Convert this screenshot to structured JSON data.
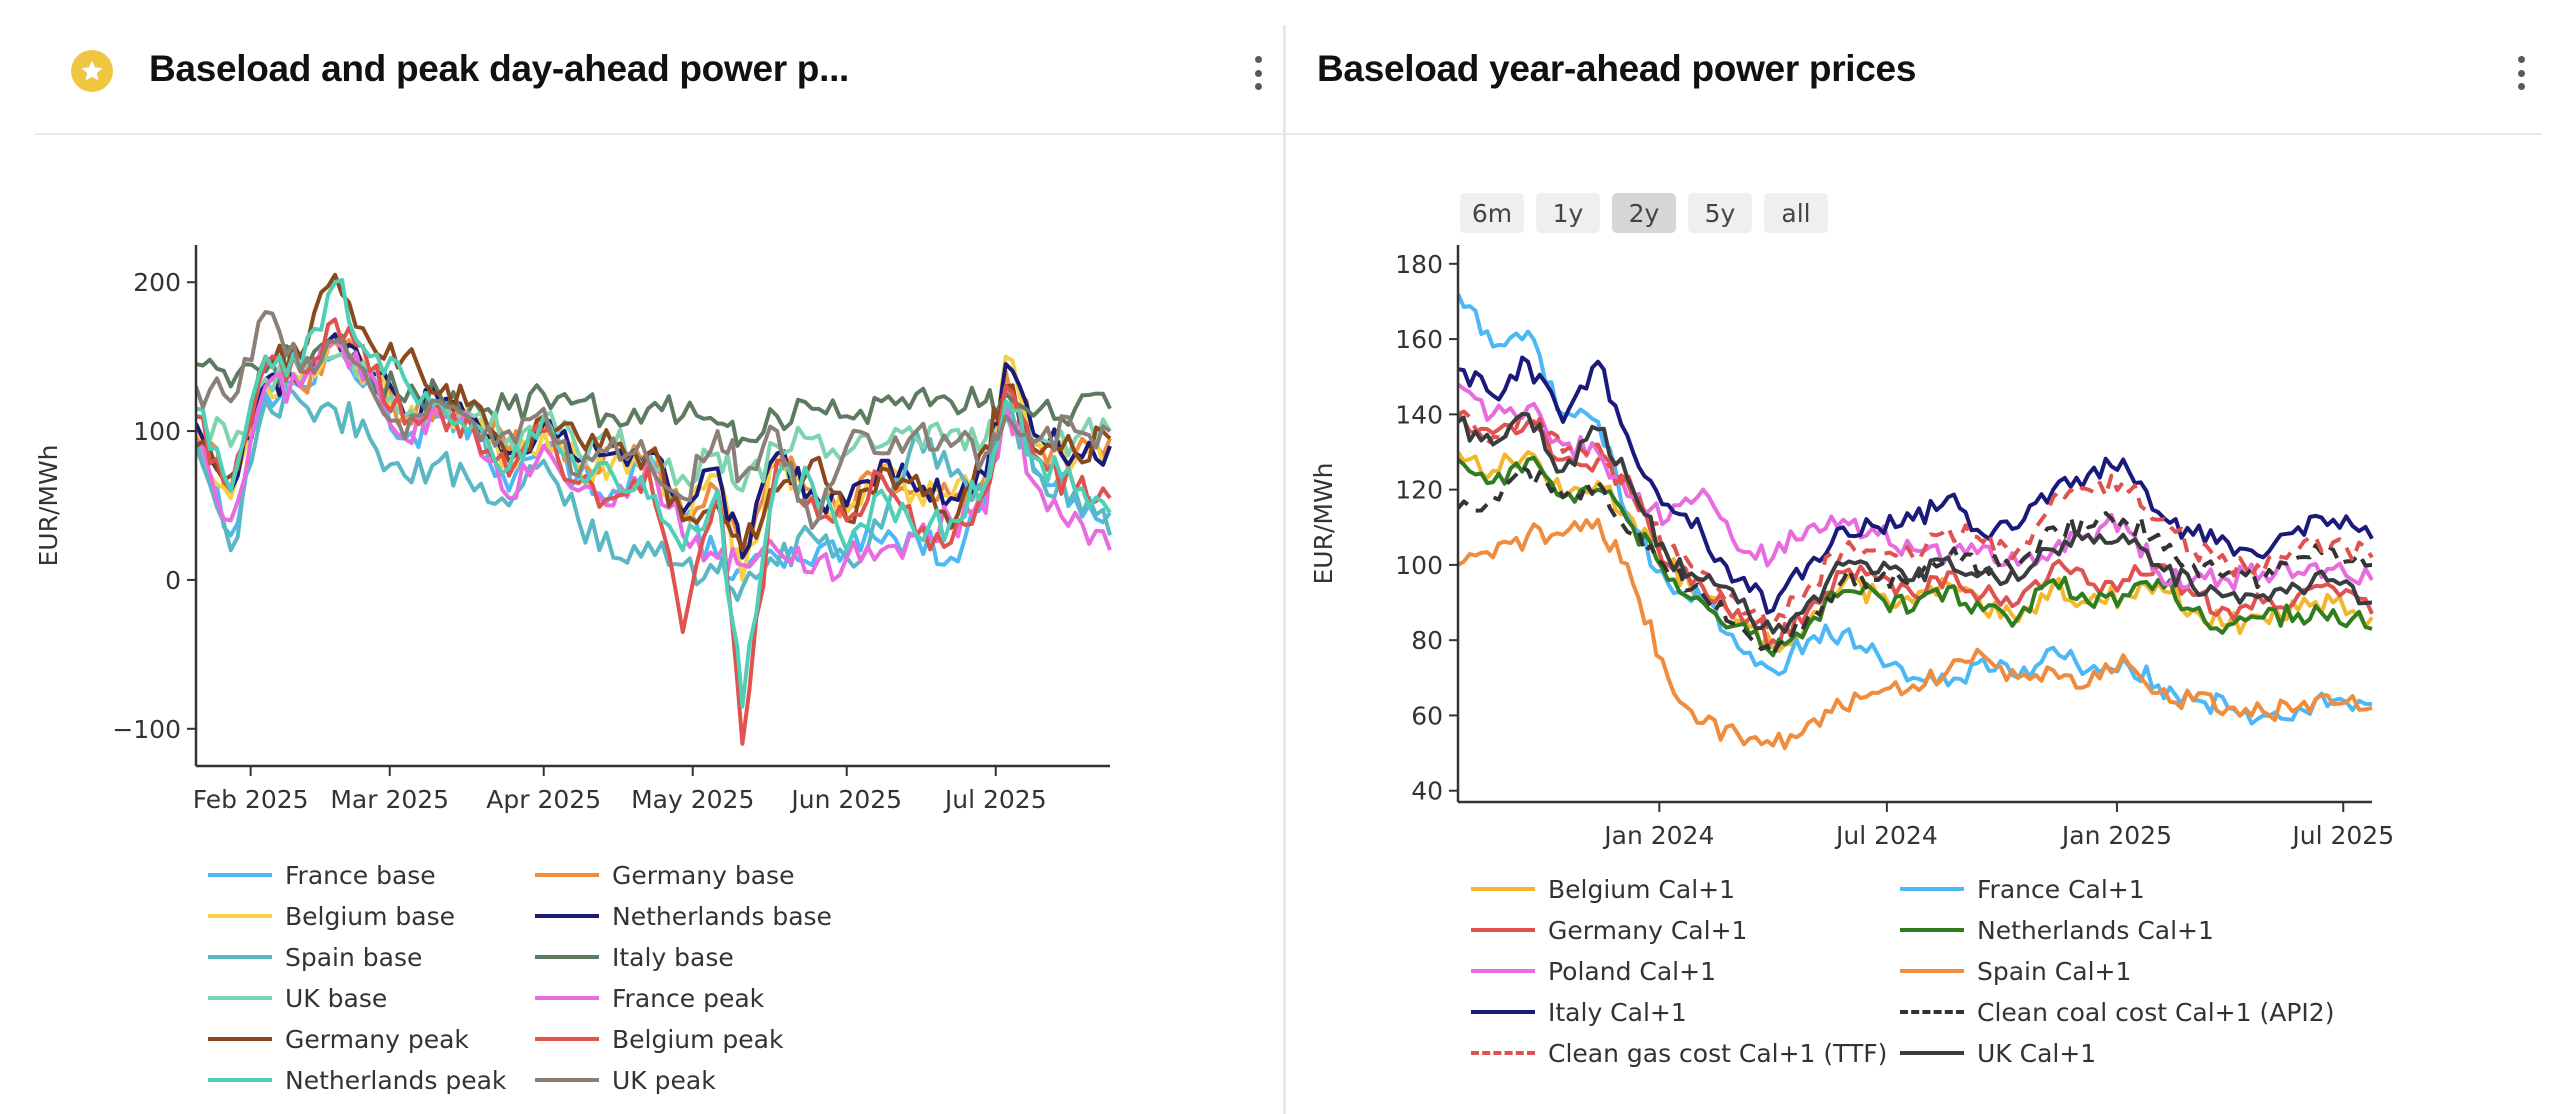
{
  "left_panel": {
    "title": "Baseload and peak day-ahead power p...",
    "favorite_icon": "star-icon",
    "menu_icon": "kebab-menu-icon"
  },
  "right_panel": {
    "title": "Baseload year-ahead power prices",
    "menu_icon": "kebab-menu-icon",
    "range_buttons": [
      {
        "label": "6m",
        "active": false
      },
      {
        "label": "1y",
        "active": false
      },
      {
        "label": "2y",
        "active": true
      },
      {
        "label": "5y",
        "active": false
      },
      {
        "label": "all",
        "active": false
      }
    ]
  },
  "chart_data": [
    {
      "type": "line",
      "title": "Baseload and peak day-ahead power prices",
      "xlabel": "",
      "ylabel": "EUR/MWh",
      "x_range": [
        "2025-01-21",
        "2025-07-24"
      ],
      "ylim": [
        -125,
        225
      ],
      "yticks": [
        -100,
        0,
        100,
        200
      ],
      "ytick_labels": [
        "−100",
        "0",
        "100",
        "200"
      ],
      "xticks": [
        "2025-02-01",
        "2025-03-01",
        "2025-04-01",
        "2025-05-01",
        "2025-06-01",
        "2025-07-01"
      ],
      "xtick_labels": [
        "Feb 2025",
        "Mar 2025",
        "Apr 2025",
        "May 2025",
        "Jun 2025",
        "Jul 2025"
      ],
      "grid": false,
      "legend_position": "bottom",
      "x": [
        "2025-01-21",
        "2025-01-28",
        "2025-02-04",
        "2025-02-11",
        "2025-02-18",
        "2025-02-25",
        "2025-03-04",
        "2025-03-11",
        "2025-03-18",
        "2025-03-25",
        "2025-04-01",
        "2025-04-08",
        "2025-04-15",
        "2025-04-22",
        "2025-04-29",
        "2025-05-06",
        "2025-05-11",
        "2025-05-18",
        "2025-05-25",
        "2025-06-01",
        "2025-06-08",
        "2025-06-15",
        "2025-06-22",
        "2025-06-29",
        "2025-07-03",
        "2025-07-10",
        "2025-07-17",
        "2025-07-24"
      ],
      "series": [
        {
          "name": "France base",
          "color": "#4db8f5",
          "dash": false,
          "values": [
            100,
            30,
            125,
            130,
            150,
            135,
            95,
            110,
            105,
            60,
            90,
            70,
            60,
            85,
            40,
            15,
            5,
            15,
            10,
            20,
            25,
            30,
            15,
            55,
            135,
            70,
            55,
            45
          ]
        },
        {
          "name": "Germany base",
          "color": "#ef8c3d",
          "dash": false,
          "values": [
            105,
            60,
            135,
            130,
            160,
            140,
            110,
            120,
            110,
            85,
            105,
            75,
            90,
            85,
            45,
            60,
            20,
            80,
            60,
            50,
            75,
            60,
            55,
            70,
            140,
            90,
            85,
            95
          ]
        },
        {
          "name": "Belgium base",
          "color": "#f7d046",
          "dash": false,
          "values": [
            100,
            55,
            130,
            135,
            160,
            140,
            105,
            115,
            105,
            80,
            100,
            75,
            80,
            80,
            40,
            70,
            0,
            85,
            55,
            45,
            75,
            60,
            55,
            65,
            150,
            90,
            80,
            90
          ]
        },
        {
          "name": "Netherlands base",
          "color": "#1a1a7a",
          "dash": false,
          "values": [
            105,
            60,
            135,
            130,
            165,
            140,
            110,
            120,
            110,
            85,
            105,
            80,
            85,
            85,
            45,
            75,
            15,
            85,
            60,
            50,
            80,
            60,
            55,
            70,
            145,
            95,
            85,
            90
          ]
        },
        {
          "name": "Spain base",
          "color": "#5ab8c4",
          "dash": false,
          "values": [
            90,
            20,
            120,
            120,
            115,
            95,
            70,
            80,
            60,
            50,
            80,
            40,
            15,
            25,
            10,
            5,
            -5,
            10,
            30,
            15,
            35,
            100,
            70,
            60,
            120,
            70,
            60,
            30
          ]
        },
        {
          "name": "Italy base",
          "color": "#5e7a60",
          "dash": false,
          "values": [
            145,
            130,
            140,
            150,
            160,
            140,
            120,
            125,
            120,
            115,
            125,
            120,
            110,
            115,
            110,
            105,
            95,
            110,
            115,
            110,
            120,
            125,
            120,
            120,
            125,
            115,
            115,
            115
          ]
        },
        {
          "name": "UK base",
          "color": "#7fd4b0",
          "dash": false,
          "values": [
            110,
            90,
            135,
            130,
            150,
            140,
            110,
            120,
            110,
            95,
            110,
            85,
            90,
            85,
            70,
            85,
            60,
            90,
            95,
            85,
            90,
            95,
            100,
            95,
            110,
            95,
            95,
            100
          ]
        },
        {
          "name": "France peak",
          "color": "#e86bdf",
          "dash": false,
          "values": [
            95,
            40,
            130,
            130,
            160,
            140,
            95,
            110,
            100,
            55,
            90,
            60,
            50,
            80,
            30,
            15,
            10,
            20,
            5,
            15,
            20,
            30,
            40,
            45,
            120,
            60,
            45,
            20
          ]
        },
        {
          "name": "Germany peak",
          "color": "#8b4a1e",
          "dash": false,
          "values": [
            90,
            70,
            150,
            150,
            205,
            160,
            150,
            125,
            120,
            80,
            110,
            95,
            90,
            85,
            40,
            50,
            20,
            60,
            80,
            40,
            75,
            70,
            35,
            90,
            130,
            85,
            85,
            95
          ]
        },
        {
          "name": "Belgium peak",
          "color": "#e0524f",
          "dash": false,
          "values": [
            110,
            60,
            145,
            140,
            175,
            140,
            105,
            115,
            100,
            70,
            100,
            65,
            55,
            75,
            -35,
            60,
            -110,
            80,
            55,
            40,
            70,
            30,
            25,
            60,
            130,
            80,
            60,
            55
          ]
        },
        {
          "name": "Netherlands peak",
          "color": "#4fcfb5",
          "dash": false,
          "values": [
            115,
            60,
            150,
            140,
            200,
            150,
            135,
            120,
            105,
            75,
            110,
            70,
            70,
            55,
            20,
            60,
            -85,
            70,
            65,
            20,
            60,
            30,
            40,
            65,
            120,
            80,
            60,
            45
          ]
        },
        {
          "name": "UK peak",
          "color": "#8a8078",
          "dash": false,
          "values": [
            130,
            120,
            180,
            140,
            160,
            130,
            95,
            120,
            105,
            100,
            115,
            70,
            95,
            80,
            55,
            100,
            70,
            100,
            35,
            90,
            85,
            100,
            90,
            85,
            110,
            95,
            100,
            100
          ]
        }
      ]
    },
    {
      "type": "line",
      "title": "Baseload year-ahead power prices",
      "xlabel": "",
      "ylabel": "EUR/MWh",
      "x_range": [
        "2023-07-24",
        "2025-07-24"
      ],
      "ylim": [
        37,
        185
      ],
      "yticks": [
        40,
        60,
        80,
        100,
        120,
        140,
        160,
        180
      ],
      "ytick_labels": [
        "40",
        "60",
        "80",
        "100",
        "120",
        "140",
        "160",
        "180"
      ],
      "xticks": [
        "2024-01-01",
        "2024-07-01",
        "2025-01-01",
        "2025-07-01"
      ],
      "xtick_labels": [
        "Jan 2024",
        "Jul 2024",
        "Jan 2025",
        "Jul 2025"
      ],
      "grid": false,
      "legend_position": "bottom",
      "x": [
        "2023-07-24",
        "2023-08-21",
        "2023-09-18",
        "2023-10-16",
        "2023-11-13",
        "2023-12-11",
        "2024-01-08",
        "2024-02-05",
        "2024-03-04",
        "2024-04-01",
        "2024-04-29",
        "2024-05-27",
        "2024-06-24",
        "2024-07-22",
        "2024-08-19",
        "2024-09-16",
        "2024-10-14",
        "2024-11-11",
        "2024-12-09",
        "2025-01-06",
        "2025-02-03",
        "2025-03-03",
        "2025-03-31",
        "2025-04-28",
        "2025-05-26",
        "2025-06-23",
        "2025-07-24"
      ],
      "series": [
        {
          "name": "Belgium Cal+1",
          "color": "#f3b62e",
          "dash": false,
          "values": [
            130,
            125,
            130,
            118,
            122,
            112,
            100,
            92,
            85,
            78,
            85,
            95,
            92,
            90,
            95,
            88,
            85,
            95,
            90,
            92,
            95,
            88,
            84,
            86,
            88,
            90,
            86
          ]
        },
        {
          "name": "France Cal+1",
          "color": "#4db8f5",
          "dash": false,
          "values": [
            172,
            158,
            162,
            140,
            138,
            110,
            95,
            90,
            78,
            72,
            80,
            82,
            76,
            70,
            68,
            75,
            70,
            78,
            72,
            75,
            68,
            64,
            62,
            60,
            62,
            64,
            63
          ]
        },
        {
          "name": "Germany Cal+1",
          "color": "#e0524f",
          "dash": false,
          "values": [
            140,
            135,
            138,
            128,
            128,
            118,
            100,
            94,
            88,
            80,
            88,
            98,
            96,
            92,
            98,
            92,
            90,
            100,
            95,
            96,
            100,
            92,
            88,
            90,
            92,
            94,
            87
          ]
        },
        {
          "name": "Netherlands Cal+1",
          "color": "#2f7d1f",
          "dash": false,
          "values": [
            128,
            122,
            128,
            118,
            120,
            110,
            96,
            90,
            84,
            76,
            84,
            93,
            92,
            88,
            94,
            88,
            86,
            96,
            90,
            92,
            96,
            88,
            84,
            86,
            87,
            88,
            83
          ]
        },
        {
          "name": "Poland Cal+1",
          "color": "#e86bdf",
          "dash": false,
          "values": [
            148,
            140,
            142,
            132,
            130,
            118,
            112,
            120,
            104,
            102,
            110,
            112,
            108,
            104,
            102,
            105,
            100,
            104,
            108,
            112,
            98,
            96,
            96,
            98,
            98,
            99,
            96
          ]
        },
        {
          "name": "Spain Cal+1",
          "color": "#ef8c3d",
          "dash": false,
          "values": [
            100,
            102,
            108,
            108,
            112,
            95,
            70,
            58,
            55,
            52,
            58,
            62,
            66,
            68,
            72,
            76,
            70,
            72,
            68,
            76,
            66,
            64,
            62,
            61,
            62,
            63,
            62
          ]
        },
        {
          "name": "Italy Cal+1",
          "color": "#1a1a7a",
          "dash": false,
          "values": [
            152,
            145,
            154,
            138,
            154,
            130,
            116,
            108,
            96,
            88,
            100,
            110,
            110,
            112,
            118,
            108,
            110,
            120,
            124,
            128,
            114,
            108,
            106,
            102,
            110,
            112,
            107
          ]
        },
        {
          "name": "Clean coal cost Cal+1 (API2)",
          "color": "#333333",
          "dash": true,
          "values": [
            115,
            118,
            125,
            118,
            122,
            108,
            98,
            92,
            84,
            76,
            86,
            96,
            96,
            96,
            102,
            100,
            100,
            110,
            110,
            112,
            108,
            100,
            98,
            96,
            102,
            104,
            100
          ]
        },
        {
          "name": "Clean gas cost Cal+1 (TTF)",
          "color": "#e0524f",
          "dash": true,
          "values": [
            140,
            134,
            140,
            130,
            132,
            120,
            104,
            98,
            90,
            84,
            94,
            104,
            104,
            102,
            110,
            106,
            104,
            118,
            120,
            122,
            112,
            104,
            100,
            98,
            104,
            106,
            102
          ]
        },
        {
          "name": "UK Cal+1",
          "color": "#3a3d40",
          "dash": false,
          "values": [
            138,
            132,
            140,
            125,
            136,
            120,
            102,
            96,
            90,
            82,
            90,
            100,
            98,
            96,
            102,
            98,
            96,
            104,
            108,
            108,
            100,
            94,
            92,
            92,
            94,
            96,
            90
          ]
        }
      ]
    }
  ]
}
